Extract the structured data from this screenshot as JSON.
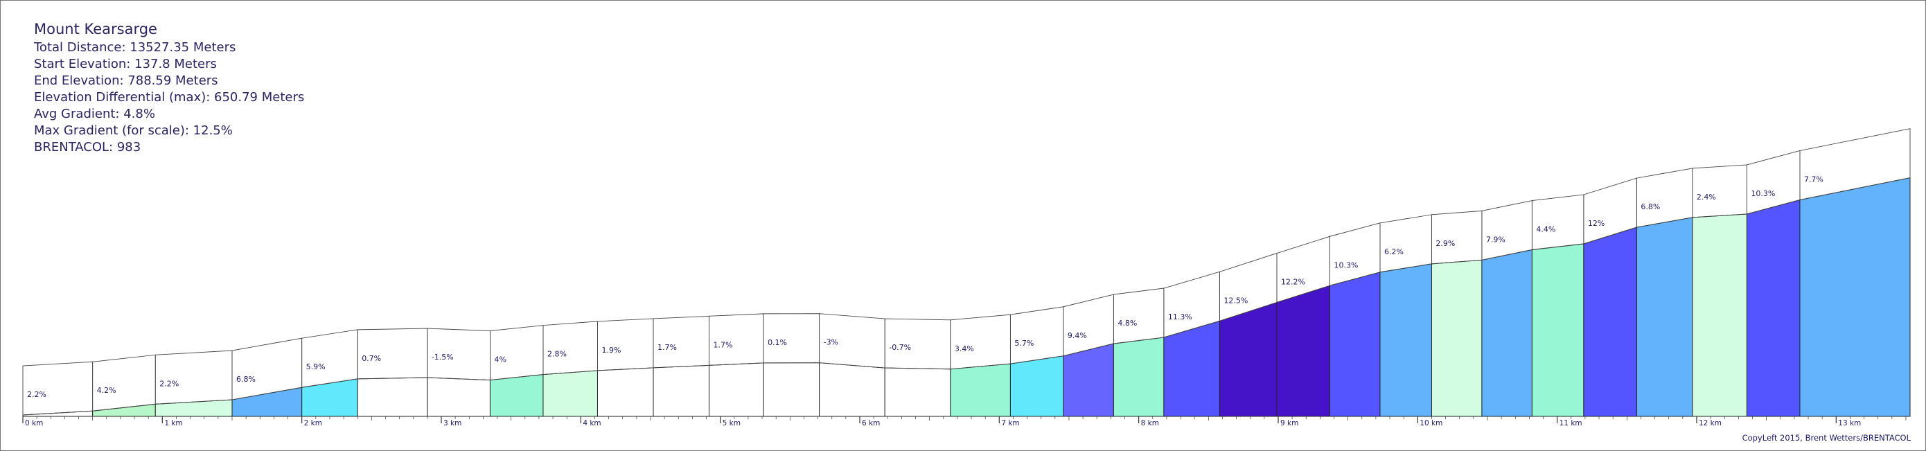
{
  "title": "Mount Kearsarge",
  "stats": [
    "Total Distance: 13527.35 Meters",
    "Start Elevation: 137.8 Meters",
    "End Elevation: 788.59 Meters",
    "Elevation Differential (max): 650.79 Meters",
    "Avg Gradient: 4.8%",
    "Max Gradient (for scale): 12.5%",
    "BRENTACOL: 983"
  ],
  "copyright": "CopyLeft 2015, Brent Wetters/BRENTACOL",
  "chart_data": {
    "type": "area",
    "x_unit": "km",
    "xlim": [
      0,
      13.53
    ],
    "km_ticks": [
      "0 km",
      "1 km",
      "2 km",
      "3 km",
      "4 km",
      "5 km",
      "6 km",
      "7 km",
      "8 km",
      "9 km",
      "10 km",
      "11 km",
      "12 km",
      "13 km"
    ],
    "segments": [
      {
        "start_km": 0.0,
        "end_km": 0.5,
        "gradient": 2.2,
        "label": "2.2%",
        "color": "#ffffff"
      },
      {
        "start_km": 0.5,
        "end_km": 0.95,
        "gradient": 4.2,
        "label": "4.2%",
        "color": "#b7f6c8"
      },
      {
        "start_km": 0.95,
        "end_km": 1.5,
        "gradient": 2.2,
        "label": "2.2%",
        "color": "#d3fde2"
      },
      {
        "start_km": 1.5,
        "end_km": 2.0,
        "gradient": 6.8,
        "label": "6.8%",
        "color": "#62b3fc"
      },
      {
        "start_km": 2.0,
        "end_km": 2.4,
        "gradient": 5.9,
        "label": "5.9%",
        "color": "#62e8fc"
      },
      {
        "start_km": 2.4,
        "end_km": 2.9,
        "gradient": 0.7,
        "label": "0.7%",
        "color": "#ffffff"
      },
      {
        "start_km": 2.9,
        "end_km": 3.35,
        "gradient": -1.5,
        "label": "-1.5%",
        "color": "#ffffff"
      },
      {
        "start_km": 3.35,
        "end_km": 3.73,
        "gradient": 4,
        "label": "4%",
        "color": "#97f6d4"
      },
      {
        "start_km": 3.73,
        "end_km": 4.12,
        "gradient": 2.8,
        "label": "2.8%",
        "color": "#d3fde2"
      },
      {
        "start_km": 4.12,
        "end_km": 4.52,
        "gradient": 1.9,
        "label": "1.9%",
        "color": "#ffffff"
      },
      {
        "start_km": 4.52,
        "end_km": 4.92,
        "gradient": 1.7,
        "label": "1.7%",
        "color": "#ffffff"
      },
      {
        "start_km": 4.92,
        "end_km": 5.31,
        "gradient": 1.7,
        "label": "1.7%",
        "color": "#ffffff"
      },
      {
        "start_km": 5.31,
        "end_km": 5.71,
        "gradient": 0.1,
        "label": "0.1%",
        "color": "#ffffff"
      },
      {
        "start_km": 5.71,
        "end_km": 6.18,
        "gradient": -3,
        "label": "-3%",
        "color": "#ffffff"
      },
      {
        "start_km": 6.18,
        "end_km": 6.65,
        "gradient": -0.7,
        "label": "-0.7%",
        "color": "#ffffff"
      },
      {
        "start_km": 6.65,
        "end_km": 7.08,
        "gradient": 3.4,
        "label": "3.4%",
        "color": "#97f6d4"
      },
      {
        "start_km": 7.08,
        "end_km": 7.46,
        "gradient": 5.7,
        "label": "5.7%",
        "color": "#62e8fc"
      },
      {
        "start_km": 7.46,
        "end_km": 7.82,
        "gradient": 9.4,
        "label": "9.4%",
        "color": "#6666ff"
      },
      {
        "start_km": 7.82,
        "end_km": 8.18,
        "gradient": 4.8,
        "label": "4.8%",
        "color": "#97f6d4"
      },
      {
        "start_km": 8.18,
        "end_km": 8.58,
        "gradient": 11.3,
        "label": "11.3%",
        "color": "#5555ff"
      },
      {
        "start_km": 8.58,
        "end_km": 8.99,
        "gradient": 12.5,
        "label": "12.5%",
        "color": "#4614c8"
      },
      {
        "start_km": 8.99,
        "end_km": 9.37,
        "gradient": 12.2,
        "label": "12.2%",
        "color": "#4614c8"
      },
      {
        "start_km": 9.37,
        "end_km": 9.73,
        "gradient": 10.3,
        "label": "10.3%",
        "color": "#5555ff"
      },
      {
        "start_km": 9.73,
        "end_km": 10.1,
        "gradient": 6.2,
        "label": "6.2%",
        "color": "#62b3fc"
      },
      {
        "start_km": 10.1,
        "end_km": 10.46,
        "gradient": 2.9,
        "label": "2.9%",
        "color": "#d3fde2"
      },
      {
        "start_km": 10.46,
        "end_km": 10.82,
        "gradient": 7.9,
        "label": "7.9%",
        "color": "#62b3fc"
      },
      {
        "start_km": 10.82,
        "end_km": 11.19,
        "gradient": 4.4,
        "label": "4.4%",
        "color": "#97f6d4"
      },
      {
        "start_km": 11.19,
        "end_km": 11.57,
        "gradient": 12,
        "label": "12%",
        "color": "#5555ff"
      },
      {
        "start_km": 11.57,
        "end_km": 11.97,
        "gradient": 6.8,
        "label": "6.8%",
        "color": "#62b3fc"
      },
      {
        "start_km": 11.97,
        "end_km": 12.36,
        "gradient": 2.4,
        "label": "2.4%",
        "color": "#d3fde2"
      },
      {
        "start_km": 12.36,
        "end_km": 12.74,
        "gradient": 10.3,
        "label": "10.3%",
        "color": "#5555ff"
      },
      {
        "start_km": 12.74,
        "end_km": 13.53,
        "gradient": 7.7,
        "label": "7.7%",
        "color": "#62b3fc"
      }
    ]
  }
}
